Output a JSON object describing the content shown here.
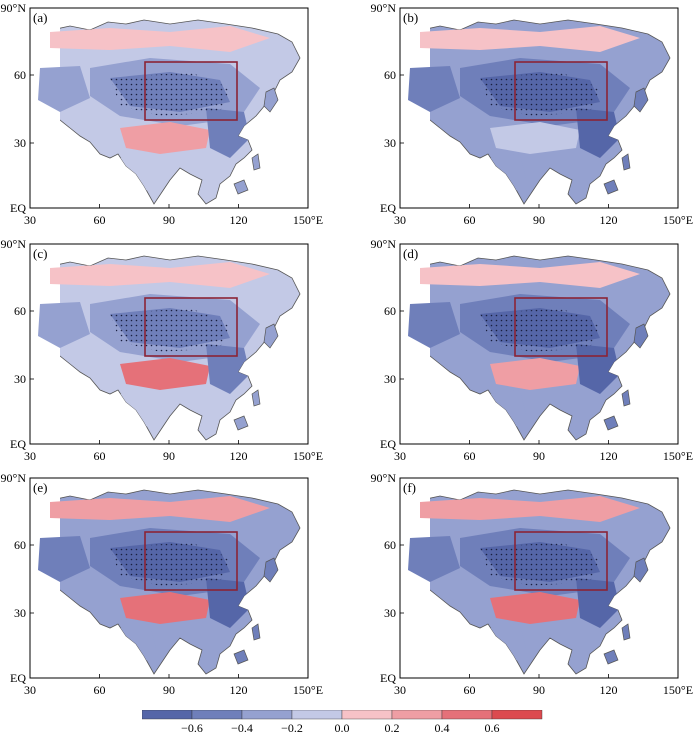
{
  "panels": [
    {
      "id": "a",
      "label": "(a)"
    },
    {
      "id": "b",
      "label": "(b)"
    },
    {
      "id": "c",
      "label": "(c)"
    },
    {
      "id": "d",
      "label": "(d)"
    },
    {
      "id": "e",
      "label": "(e)"
    },
    {
      "id": "f",
      "label": "(f)"
    }
  ],
  "map_axes": {
    "lat_labels": [
      "90°N",
      "60",
      "30",
      "EQ"
    ],
    "lon_labels": [
      "30",
      "60",
      "90",
      "120",
      "150°E"
    ]
  },
  "colorbar": {
    "tick_labels": [
      "−0.6",
      "−0.4",
      "−0.2",
      "0.0",
      "0.2",
      "0.4",
      "0.6"
    ],
    "colors": [
      "#5566a8",
      "#6f7fba",
      "#95a1d0",
      "#c3c9e6",
      "#f6c2c7",
      "#ef9ea4",
      "#e57179",
      "#dc4a4f"
    ]
  },
  "colors": {
    "ocean": "#ffffff",
    "coastline": "#555555",
    "box": "#8b2336",
    "stipple": "#1a2040"
  }
}
